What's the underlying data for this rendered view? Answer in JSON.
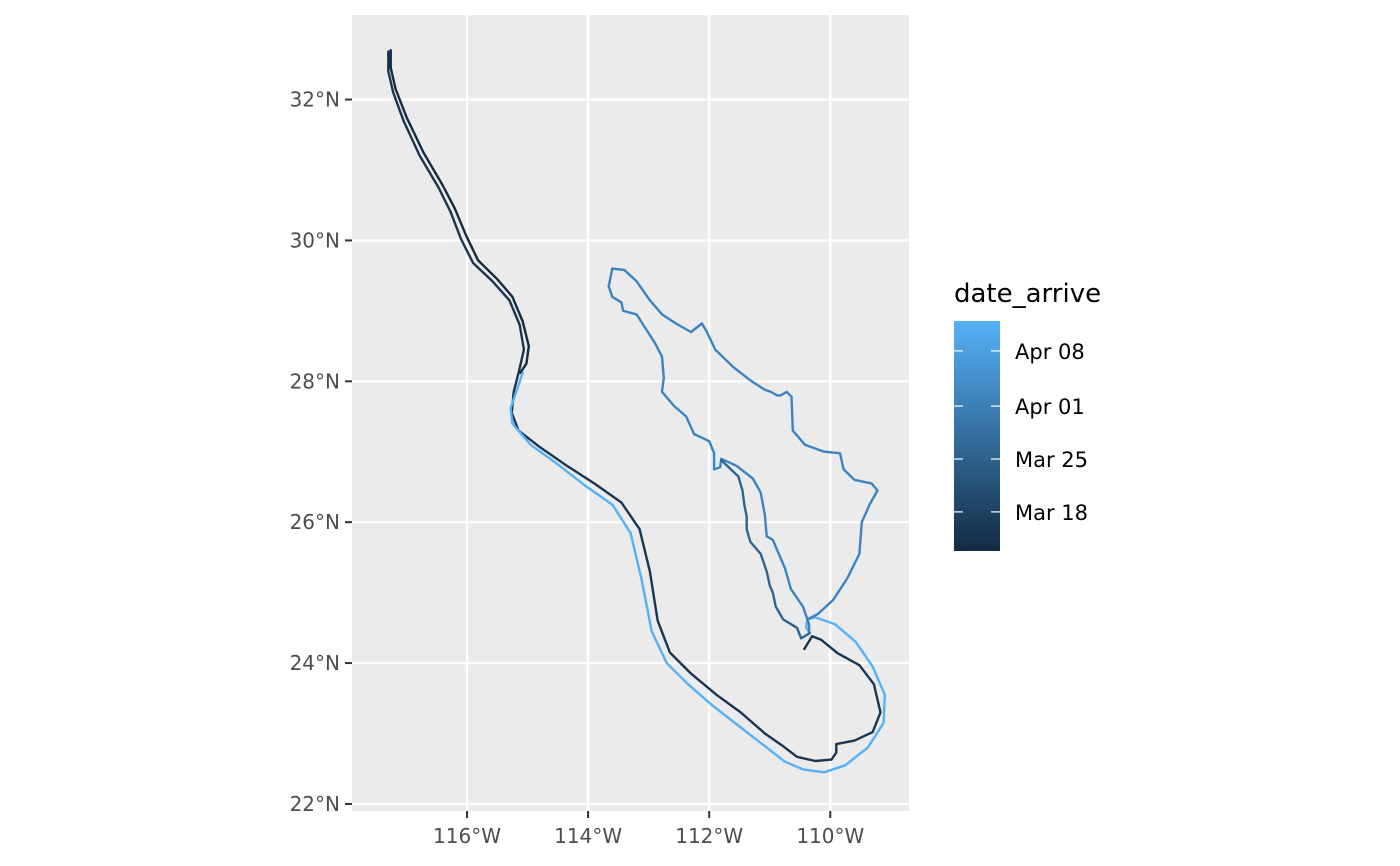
{
  "chart_data": {
    "type": "map",
    "title": "",
    "xlabel": "",
    "ylabel": "",
    "x_axis": {
      "range": [
        -117.9,
        -108.7
      ],
      "ticks": [
        -116,
        -114,
        -112,
        -110
      ],
      "tick_labels": [
        "116°W",
        "114°W",
        "112°W",
        "110°W"
      ]
    },
    "y_axis": {
      "range": [
        21.9,
        33.2
      ],
      "ticks": [
        22,
        24,
        26,
        28,
        30,
        32
      ],
      "tick_labels": [
        "22°N",
        "24°N",
        "26°N",
        "28°N",
        "30°N",
        "32°N"
      ]
    },
    "grid": true,
    "legend": {
      "title": "date_arrive",
      "position": "right",
      "type": "colorbar",
      "range_colors": [
        "#132b43",
        "#56b1f7"
      ],
      "breaks": [
        {
          "label": "Apr 08",
          "fraction": 0.87
        },
        {
          "label": "Apr 01",
          "fraction": 0.63
        },
        {
          "label": "Mar 25",
          "fraction": 0.4
        },
        {
          "label": "Mar 18",
          "fraction": 0.17
        }
      ]
    },
    "series": [
      {
        "color": "#132b43",
        "points": [
          [
            -117.26,
            32.7
          ],
          [
            -117.26,
            32.45
          ],
          [
            -117.18,
            32.15
          ],
          [
            -117.0,
            31.75
          ],
          [
            -116.72,
            31.25
          ],
          [
            -116.4,
            30.78
          ],
          [
            -116.2,
            30.45
          ],
          [
            -116.02,
            30.08
          ],
          [
            -115.82,
            29.72
          ],
          [
            -115.5,
            29.45
          ],
          [
            -115.25,
            29.2
          ],
          [
            -115.08,
            28.85
          ],
          [
            -114.98,
            28.5
          ],
          [
            -115.02,
            28.25
          ],
          [
            -115.12,
            28.12
          ]
        ]
      },
      {
        "color": "#1a3550",
        "points": [
          [
            -117.3,
            32.68
          ],
          [
            -117.3,
            32.4
          ],
          [
            -117.22,
            32.1
          ],
          [
            -117.05,
            31.7
          ],
          [
            -116.78,
            31.2
          ],
          [
            -116.47,
            30.75
          ],
          [
            -116.27,
            30.4
          ],
          [
            -116.1,
            30.02
          ],
          [
            -115.9,
            29.68
          ],
          [
            -115.58,
            29.42
          ],
          [
            -115.3,
            29.15
          ],
          [
            -115.13,
            28.8
          ],
          [
            -115.06,
            28.45
          ],
          [
            -115.14,
            28.15
          ],
          [
            -115.23,
            27.85
          ],
          [
            -115.26,
            27.55
          ],
          [
            -115.15,
            27.3
          ],
          [
            -114.82,
            27.08
          ],
          [
            -114.35,
            26.8
          ],
          [
            -113.9,
            26.55
          ],
          [
            -113.45,
            26.28
          ],
          [
            -113.15,
            25.9
          ],
          [
            -112.98,
            25.3
          ],
          [
            -112.85,
            24.6
          ],
          [
            -112.65,
            24.15
          ],
          [
            -112.3,
            23.85
          ],
          [
            -111.88,
            23.55
          ],
          [
            -111.48,
            23.3
          ],
          [
            -111.08,
            23.0
          ],
          [
            -110.78,
            22.82
          ],
          [
            -110.55,
            22.67
          ],
          [
            -110.25,
            22.61
          ],
          [
            -109.98,
            22.63
          ],
          [
            -109.9,
            22.73
          ],
          [
            -109.9,
            22.85
          ],
          [
            -109.6,
            22.9
          ],
          [
            -109.3,
            23.02
          ],
          [
            -109.17,
            23.3
          ],
          [
            -109.28,
            23.7
          ],
          [
            -109.52,
            23.97
          ],
          [
            -109.88,
            24.14
          ],
          [
            -110.15,
            24.33
          ],
          [
            -110.3,
            24.38
          ],
          [
            -110.43,
            24.2
          ]
        ]
      },
      {
        "color": "#56b1f7",
        "points": [
          [
            -115.08,
            28.12
          ],
          [
            -115.2,
            27.82
          ],
          [
            -115.28,
            27.62
          ],
          [
            -115.25,
            27.4
          ],
          [
            -114.95,
            27.1
          ],
          [
            -114.5,
            26.82
          ],
          [
            -114.05,
            26.52
          ],
          [
            -113.6,
            26.25
          ],
          [
            -113.3,
            25.85
          ],
          [
            -113.12,
            25.2
          ],
          [
            -112.95,
            24.45
          ],
          [
            -112.7,
            24.0
          ],
          [
            -112.35,
            23.7
          ],
          [
            -111.95,
            23.4
          ],
          [
            -111.5,
            23.1
          ],
          [
            -111.05,
            22.8
          ],
          [
            -110.75,
            22.6
          ],
          [
            -110.45,
            22.49
          ],
          [
            -110.1,
            22.45
          ],
          [
            -109.75,
            22.55
          ],
          [
            -109.38,
            22.8
          ],
          [
            -109.12,
            23.15
          ],
          [
            -109.1,
            23.55
          ],
          [
            -109.3,
            23.95
          ],
          [
            -109.58,
            24.3
          ],
          [
            -109.92,
            24.55
          ],
          [
            -110.25,
            24.65
          ],
          [
            -110.38,
            24.62
          ],
          [
            -110.4,
            24.5
          ],
          [
            -110.33,
            24.43
          ]
        ]
      },
      {
        "color": "#3d83c1",
        "points": [
          [
            -110.38,
            24.62
          ],
          [
            -110.2,
            24.7
          ],
          [
            -109.95,
            24.9
          ],
          [
            -109.72,
            25.2
          ],
          [
            -109.52,
            25.55
          ],
          [
            -109.48,
            26.0
          ],
          [
            -109.35,
            26.25
          ],
          [
            -109.22,
            26.45
          ],
          [
            -109.32,
            26.55
          ],
          [
            -109.6,
            26.6
          ],
          [
            -109.78,
            26.75
          ],
          [
            -109.84,
            26.98
          ],
          [
            -110.1,
            27.0
          ],
          [
            -110.42,
            27.1
          ],
          [
            -110.62,
            27.3
          ],
          [
            -110.64,
            27.78
          ],
          [
            -110.72,
            27.85
          ],
          [
            -110.82,
            27.8
          ],
          [
            -110.88,
            27.8
          ],
          [
            -110.98,
            27.85
          ],
          [
            -111.08,
            27.88
          ],
          [
            -111.3,
            28.0
          ],
          [
            -111.6,
            28.2
          ],
          [
            -111.9,
            28.45
          ],
          [
            -112.05,
            28.72
          ],
          [
            -112.12,
            28.82
          ],
          [
            -112.3,
            28.7
          ],
          [
            -112.55,
            28.82
          ],
          [
            -112.78,
            28.95
          ],
          [
            -112.98,
            29.15
          ],
          [
            -113.2,
            29.42
          ],
          [
            -113.4,
            29.58
          ],
          [
            -113.6,
            29.6
          ],
          [
            -113.66,
            29.35
          ],
          [
            -113.6,
            29.2
          ],
          [
            -113.45,
            29.12
          ],
          [
            -113.42,
            29.0
          ],
          [
            -113.2,
            28.95
          ],
          [
            -113.05,
            28.75
          ],
          [
            -112.9,
            28.55
          ],
          [
            -112.78,
            28.35
          ],
          [
            -112.75,
            28.05
          ],
          [
            -112.78,
            27.85
          ],
          [
            -112.58,
            27.65
          ],
          [
            -112.38,
            27.5
          ],
          [
            -112.25,
            27.25
          ],
          [
            -112.0,
            27.15
          ],
          [
            -111.92,
            26.98
          ],
          [
            -111.92,
            26.75
          ],
          [
            -111.82,
            26.78
          ],
          [
            -111.8,
            26.9
          ],
          [
            -111.55,
            26.8
          ],
          [
            -111.28,
            26.62
          ],
          [
            -111.15,
            26.42
          ],
          [
            -111.08,
            26.1
          ],
          [
            -111.05,
            25.8
          ],
          [
            -110.95,
            25.75
          ],
          [
            -110.85,
            25.55
          ],
          [
            -110.75,
            25.35
          ],
          [
            -110.65,
            25.05
          ],
          [
            -110.45,
            24.8
          ],
          [
            -110.35,
            24.55
          ],
          [
            -110.35,
            24.42
          ]
        ]
      },
      {
        "color": "#2e658f",
        "points": [
          [
            -110.35,
            24.42
          ],
          [
            -110.48,
            24.35
          ],
          [
            -110.55,
            24.5
          ],
          [
            -110.78,
            24.62
          ],
          [
            -110.9,
            24.8
          ],
          [
            -110.95,
            25.0
          ],
          [
            -111.0,
            25.1
          ],
          [
            -111.05,
            25.3
          ],
          [
            -111.15,
            25.55
          ],
          [
            -111.32,
            25.72
          ],
          [
            -111.38,
            25.9
          ],
          [
            -111.38,
            26.08
          ],
          [
            -111.42,
            26.25
          ],
          [
            -111.45,
            26.45
          ],
          [
            -111.52,
            26.65
          ],
          [
            -111.8,
            26.88
          ]
        ]
      }
    ]
  }
}
